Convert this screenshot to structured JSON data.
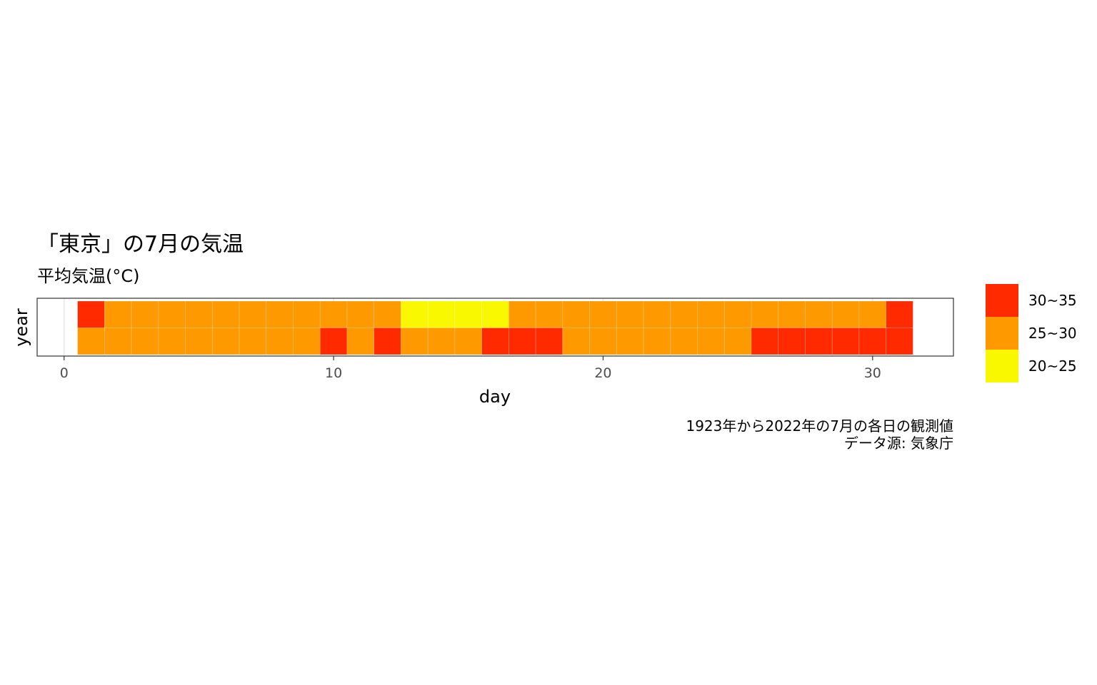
{
  "chart_data": {
    "type": "heatmap",
    "title": "「東京」の7月の気温",
    "subtitle": "平均気温(°C)",
    "xlabel": "day",
    "ylabel": "year",
    "caption": [
      "1923年から2022年の7月の各日の観測値",
      "データ源: 気象庁"
    ],
    "xlim": [
      -1,
      33
    ],
    "x_ticks": [
      "0",
      "10",
      "20",
      "30"
    ],
    "grid": true,
    "legend_position": "right",
    "legend": [
      {
        "label": "30~35",
        "color": "#FF2A00"
      },
      {
        "label": "25~30",
        "color": "#FF9900"
      },
      {
        "label": "20~25",
        "color": "#FAF800"
      }
    ],
    "days": [
      1,
      2,
      3,
      4,
      5,
      6,
      7,
      8,
      9,
      10,
      11,
      12,
      13,
      14,
      15,
      16,
      17,
      18,
      19,
      20,
      21,
      22,
      23,
      24,
      25,
      26,
      27,
      28,
      29,
      30,
      31
    ],
    "rows": [
      {
        "bins": [
          "30~35",
          "25~30",
          "25~30",
          "25~30",
          "25~30",
          "25~30",
          "25~30",
          "25~30",
          "25~30",
          "25~30",
          "25~30",
          "25~30",
          "20~25",
          "20~25",
          "20~25",
          "20~25",
          "25~30",
          "25~30",
          "25~30",
          "25~30",
          "25~30",
          "25~30",
          "25~30",
          "25~30",
          "25~30",
          "25~30",
          "25~30",
          "25~30",
          "25~30",
          "25~30",
          "30~35"
        ]
      },
      {
        "bins": [
          "25~30",
          "25~30",
          "25~30",
          "25~30",
          "25~30",
          "25~30",
          "25~30",
          "25~30",
          "25~30",
          "30~35",
          "25~30",
          "30~35",
          "25~30",
          "25~30",
          "25~30",
          "30~35",
          "30~35",
          "30~35",
          "25~30",
          "25~30",
          "25~30",
          "25~30",
          "25~30",
          "25~30",
          "25~30",
          "30~35",
          "30~35",
          "30~35",
          "30~35",
          "30~35",
          "30~35"
        ]
      }
    ]
  }
}
